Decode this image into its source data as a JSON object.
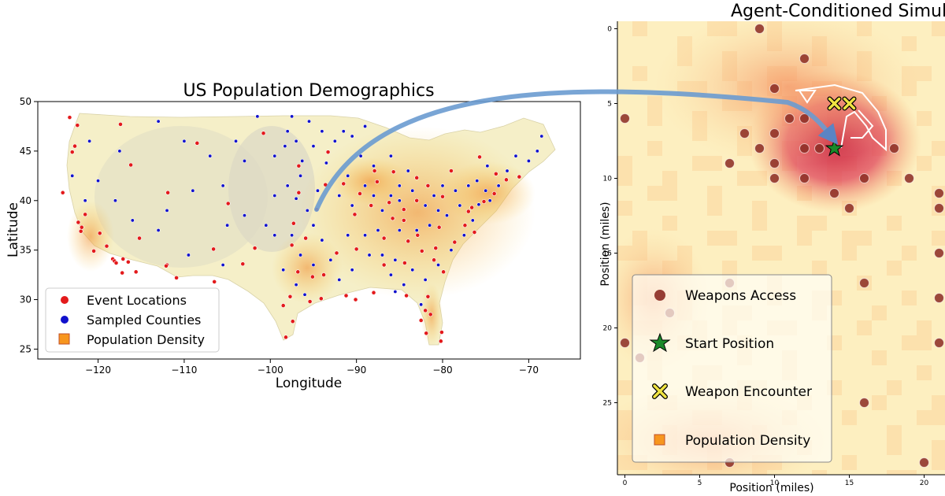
{
  "colors": {
    "event_red": "#e31a1c",
    "county_blue": "#1010cc",
    "density_orange": "#f7961e",
    "weapons_brown": "#8b2a22",
    "start_green": "#1a8a2a",
    "encounter_yellow": "#f0e442",
    "arrow_blue": "#6a9bd0"
  },
  "chart_data": [
    {
      "type": "scatter",
      "title": "US Population Demographics",
      "xlabel": "Longitude",
      "ylabel": "Latitude",
      "xlim": [
        -127,
        -64
      ],
      "ylim": [
        24,
        50
      ],
      "xticks": [
        -120,
        -110,
        -100,
        -90,
        -80,
        -70
      ],
      "yticks": [
        25,
        30,
        35,
        40,
        45,
        50
      ],
      "xtick_labels": [
        "−120",
        "−110",
        "−100",
        "−90",
        "−80",
        "−70"
      ],
      "ytick_labels": [
        "25",
        "30",
        "35",
        "40",
        "45",
        "50"
      ],
      "legend": {
        "placement": "lower-left",
        "entries": [
          {
            "label": "Event Locations",
            "marker": "circle",
            "color": "#e31a1c"
          },
          {
            "label": "Sampled Counties",
            "marker": "circle",
            "color": "#1010cc"
          },
          {
            "label": "Population Density",
            "marker": "square",
            "color": "#f7961e"
          }
        ]
      },
      "series": [
        {
          "name": "Event Locations",
          "points": [
            [
              -122.4,
              47.6
            ],
            [
              -122.7,
              45.5
            ],
            [
              -122.3,
              37.8
            ],
            [
              -121.9,
              37.3
            ],
            [
              -121.5,
              38.6
            ],
            [
              -118.3,
              34.1
            ],
            [
              -118.1,
              33.9
            ],
            [
              -117.2,
              32.7
            ],
            [
              -117.9,
              33.7
            ],
            [
              -119.8,
              36.7
            ],
            [
              -115.2,
              36.2
            ],
            [
              -112.0,
              33.5
            ],
            [
              -110.9,
              32.2
            ],
            [
              -111.9,
              40.8
            ],
            [
              -104.9,
              39.7
            ],
            [
              -106.6,
              35.1
            ],
            [
              -97.5,
              35.5
            ],
            [
              -96.8,
              32.8
            ],
            [
              -95.4,
              29.8
            ],
            [
              -98.5,
              29.4
            ],
            [
              -97.7,
              30.3
            ],
            [
              -94.6,
              39.1
            ],
            [
              -93.3,
              44.9
            ],
            [
              -90.2,
              38.6
            ],
            [
              -87.6,
              41.9
            ],
            [
              -87.9,
              43.0
            ],
            [
              -86.2,
              39.8
            ],
            [
              -84.5,
              39.1
            ],
            [
              -83.0,
              40.0
            ],
            [
              -81.7,
              41.5
            ],
            [
              -83.0,
              42.3
            ],
            [
              -80.0,
              40.4
            ],
            [
              -86.8,
              36.2
            ],
            [
              -90.0,
              35.1
            ],
            [
              -86.8,
              33.5
            ],
            [
              -84.4,
              33.7
            ],
            [
              -81.4,
              28.5
            ],
            [
              -80.2,
              25.8
            ],
            [
              -82.5,
              27.9
            ],
            [
              -81.7,
              30.3
            ],
            [
              -80.8,
              35.2
            ],
            [
              -78.6,
              35.8
            ],
            [
              -77.4,
              37.5
            ],
            [
              -77.0,
              38.9
            ],
            [
              -76.6,
              39.3
            ],
            [
              -75.2,
              39.9
            ],
            [
              -74.0,
              40.7
            ],
            [
              -71.1,
              42.4
            ],
            [
              -73.8,
              42.7
            ],
            [
              -90.1,
              30.0
            ],
            [
              -92.3,
              34.7
            ],
            [
              -95.9,
              36.2
            ],
            [
              -96.7,
              40.8
            ],
            [
              -85.8,
              38.2
            ],
            [
              -84.5,
              38.0
            ],
            [
              -82.4,
              34.9
            ],
            [
              -79.9,
              32.8
            ],
            [
              -81.0,
              34.0
            ],
            [
              -88.0,
              30.7
            ],
            [
              -91.2,
              30.4
            ],
            [
              -93.8,
              32.5
            ],
            [
              -106.5,
              31.8
            ],
            [
              -97.4,
              27.8
            ],
            [
              -101.8,
              35.2
            ],
            [
              -97.3,
              37.7
            ],
            [
              -112.1,
              33.4
            ],
            [
              -116.2,
              43.6
            ],
            [
              -117.4,
              47.7
            ],
            [
              -123.0,
              44.9
            ],
            [
              -124.1,
              40.8
            ],
            [
              -120.5,
              34.9
            ],
            [
              -122.0,
              36.9
            ],
            [
              -119.0,
              35.4
            ],
            [
              -85.7,
              42.9
            ],
            [
              -88.3,
              39.5
            ],
            [
              -89.6,
              40.7
            ],
            [
              -91.5,
              41.7
            ],
            [
              -93.6,
              41.6
            ],
            [
              -84.0,
              35.9
            ],
            [
              -82.9,
              36.5
            ],
            [
              -80.4,
              37.3
            ],
            [
              -76.3,
              36.8
            ],
            [
              -79.0,
              43.0
            ],
            [
              -75.7,
              44.4
            ],
            [
              -72.6,
              42.1
            ],
            [
              -84.2,
              30.4
            ],
            [
              -81.9,
              26.6
            ],
            [
              -80.1,
              26.7
            ],
            [
              -82.0,
              28.9
            ],
            [
              -95.1,
              32.3
            ],
            [
              -94.1,
              30.1
            ],
            [
              -98.2,
              26.2
            ],
            [
              -103.2,
              33.6
            ],
            [
              -108.5,
              45.8
            ],
            [
              -100.8,
              46.8
            ],
            [
              -96.7,
              43.5
            ],
            [
              -123.3,
              48.4
            ],
            [
              -117.1,
              34.1
            ],
            [
              -116.5,
              33.8
            ],
            [
              -115.6,
              32.8
            ]
          ]
        },
        {
          "name": "Sampled Counties",
          "points": [
            [
              -101.5,
              48.5
            ],
            [
              -98.0,
              47.0
            ],
            [
              -97.0,
              46.0
            ],
            [
              -99.5,
              44.5
            ],
            [
              -98.3,
              45.5
            ],
            [
              -96.3,
              44.0
            ],
            [
              -95.0,
              45.5
            ],
            [
              -94.0,
              47.0
            ],
            [
              -92.5,
              46.0
            ],
            [
              -93.5,
              43.8
            ],
            [
              -96.5,
              42.5
            ],
            [
              -98.0,
              41.5
            ],
            [
              -97.0,
              40.2
            ],
            [
              -99.5,
              40.5
            ],
            [
              -95.7,
              39.0
            ],
            [
              -95.0,
              37.5
            ],
            [
              -94.5,
              41.0
            ],
            [
              -91.0,
              42.5
            ],
            [
              -92.0,
              40.5
            ],
            [
              -90.5,
              39.5
            ],
            [
              -89.0,
              41.5
            ],
            [
              -88.0,
              40.5
            ],
            [
              -87.0,
              39.0
            ],
            [
              -86.0,
              40.5
            ],
            [
              -85.0,
              41.5
            ],
            [
              -84.0,
              43.0
            ],
            [
              -86.0,
              44.5
            ],
            [
              -89.5,
              44.5
            ],
            [
              -90.5,
              46.5
            ],
            [
              -85.0,
              40.0
            ],
            [
              -83.5,
              41.0
            ],
            [
              -82.0,
              39.5
            ],
            [
              -81.0,
              40.5
            ],
            [
              -80.0,
              41.5
            ],
            [
              -78.5,
              41.0
            ],
            [
              -77.0,
              41.5
            ],
            [
              -76.0,
              42.0
            ],
            [
              -75.0,
              41.0
            ],
            [
              -74.5,
              40.0
            ],
            [
              -73.5,
              41.5
            ],
            [
              -72.5,
              43.0
            ],
            [
              -71.5,
              44.5
            ],
            [
              -70.0,
              44.0
            ],
            [
              -69.0,
              45.0
            ],
            [
              -68.5,
              46.5
            ],
            [
              -78.0,
              39.5
            ],
            [
              -79.5,
              38.5
            ],
            [
              -81.5,
              37.5
            ],
            [
              -83.0,
              37.0
            ],
            [
              -85.0,
              37.0
            ],
            [
              -87.5,
              37.0
            ],
            [
              -89.0,
              36.5
            ],
            [
              -88.5,
              34.5
            ],
            [
              -90.5,
              33.0
            ],
            [
              -92.0,
              32.0
            ],
            [
              -93.0,
              34.0
            ],
            [
              -94.0,
              36.0
            ],
            [
              -91.0,
              36.5
            ],
            [
              -87.0,
              34.5
            ],
            [
              -85.5,
              34.0
            ],
            [
              -83.5,
              33.0
            ],
            [
              -82.0,
              32.0
            ],
            [
              -80.5,
              33.5
            ],
            [
              -79.0,
              35.0
            ],
            [
              -77.5,
              36.5
            ],
            [
              -76.5,
              38.0
            ],
            [
              -84.5,
              31.5
            ],
            [
              -86.0,
              32.5
            ],
            [
              -85.5,
              30.8
            ],
            [
              -82.5,
              29.5
            ],
            [
              -97.0,
              31.5
            ],
            [
              -96.0,
              30.5
            ],
            [
              -95.0,
              33.5
            ],
            [
              -96.5,
              34.5
            ],
            [
              -98.5,
              33.0
            ],
            [
              -97.5,
              36.5
            ],
            [
              -103.0,
              44.0
            ],
            [
              -104.0,
              46.0
            ],
            [
              -107.0,
              44.5
            ],
            [
              -110.0,
              46.0
            ],
            [
              -113.0,
              48.0
            ],
            [
              -121.0,
              46.0
            ],
            [
              -120.0,
              42.0
            ],
            [
              -118.0,
              40.0
            ],
            [
              -116.0,
              38.0
            ],
            [
              -112.0,
              39.0
            ],
            [
              -109.0,
              41.0
            ],
            [
              -105.5,
              41.5
            ],
            [
              -105.0,
              37.5
            ],
            [
              -103.0,
              38.5
            ],
            [
              -100.5,
              37.5
            ],
            [
              -99.5,
              36.5
            ],
            [
              -105.5,
              33.5
            ],
            [
              -109.5,
              34.5
            ],
            [
              -113.0,
              37.0
            ],
            [
              -121.5,
              40.0
            ],
            [
              -123.0,
              42.5
            ],
            [
              -117.5,
              45.0
            ],
            [
              -88.0,
              43.5
            ],
            [
              -89.0,
              47.5
            ],
            [
              -91.5,
              47.0
            ],
            [
              -95.5,
              48.0
            ],
            [
              -97.5,
              48.5
            ],
            [
              -80.5,
              39.0
            ],
            [
              -75.8,
              39.6
            ],
            [
              -74.8,
              43.5
            ]
          ]
        },
        {
          "name": "Population Density",
          "points": []
        }
      ]
    },
    {
      "type": "heatmap",
      "title": "Agent-Conditioned Simulation",
      "xlabel": "Position (miles)",
      "ylabel": "Position (miles)",
      "xlim": [
        -0.5,
        21
      ],
      "ylim": [
        29.5,
        -0.5
      ],
      "xticks": [
        0,
        5,
        10,
        15,
        20
      ],
      "yticks": [
        0,
        5,
        10,
        15,
        20,
        25
      ],
      "xtick_labels": [
        "0",
        "5",
        "10",
        "15",
        "20"
      ],
      "ytick_labels": [
        "0",
        "5",
        "10",
        "15",
        "20",
        "25"
      ],
      "legend": {
        "placement": "lower-left",
        "entries": [
          {
            "label": "Weapons Access",
            "marker": "circle",
            "color": "#8b2a22"
          },
          {
            "label": "Start Position",
            "marker": "star",
            "color": "#1a8a2a"
          },
          {
            "label": "Weapon Encounter",
            "marker": "x-square",
            "color": "#f0e442"
          },
          {
            "label": "Population Density",
            "marker": "square",
            "color": "#f7961e"
          }
        ]
      },
      "series": [
        {
          "name": "Weapons Access",
          "points": [
            [
              9,
              0
            ],
            [
              12,
              2
            ],
            [
              10,
              4
            ],
            [
              0,
              6
            ],
            [
              12,
              6
            ],
            [
              11,
              6
            ],
            [
              8,
              7
            ],
            [
              10,
              7
            ],
            [
              12,
              8
            ],
            [
              13,
              8
            ],
            [
              9,
              8
            ],
            [
              7,
              9
            ],
            [
              10,
              9
            ],
            [
              10,
              10
            ],
            [
              12,
              10
            ],
            [
              14,
              11
            ],
            [
              15,
              12
            ],
            [
              16,
              10
            ],
            [
              18,
              8
            ],
            [
              19,
              10
            ],
            [
              21,
              11
            ],
            [
              21,
              12
            ],
            [
              16,
              17
            ],
            [
              7,
              17
            ],
            [
              0,
              21
            ],
            [
              1,
              22
            ],
            [
              3,
              19
            ],
            [
              16,
              25
            ],
            [
              20,
              29
            ],
            [
              7,
              29
            ],
            [
              21,
              15
            ],
            [
              21,
              18
            ],
            [
              21,
              21
            ]
          ]
        },
        {
          "name": "Start Position",
          "points": [
            [
              14,
              8
            ]
          ]
        },
        {
          "name": "Weapon Encounter",
          "points": [
            [
              14,
              5
            ],
            [
              15,
              5
            ]
          ]
        },
        {
          "name": "Population Density",
          "points": []
        }
      ]
    }
  ]
}
